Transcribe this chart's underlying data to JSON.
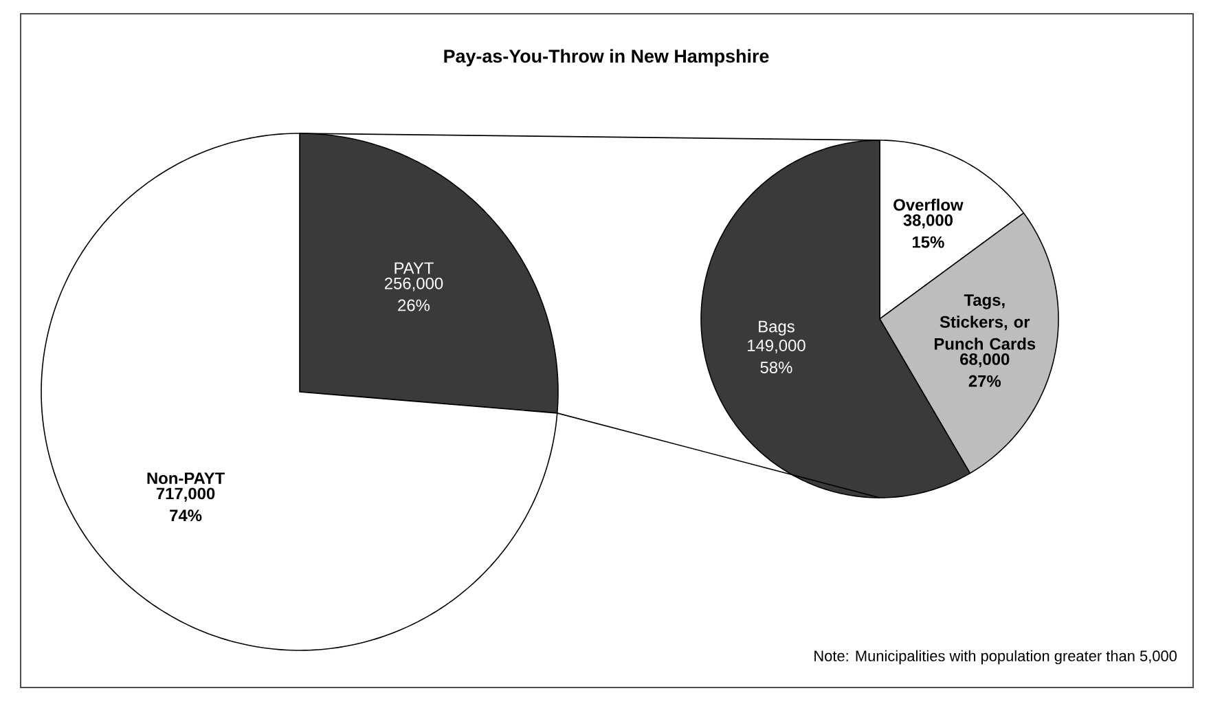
{
  "chart_data": [
    {
      "type": "pie",
      "title": "Pay-as-You-Throw in New Hampshire",
      "categories": [
        "PAYT",
        "Non-PAYT"
      ],
      "values": [
        256000,
        717000
      ],
      "colors": [
        "#3a3a3a",
        "#ffffff"
      ],
      "value_labels": [
        "256,000 26%",
        "717,000 74%"
      ]
    },
    {
      "type": "pie",
      "categories": [
        "Overflow",
        "Tags, Stickers, or Punch Cards",
        "Bags"
      ],
      "values": [
        38000,
        68000,
        149000
      ],
      "colors": [
        "#ffffff",
        "#bdbdbd",
        "#3a3a3a"
      ],
      "value_labels": [
        "38,000 15%",
        "68,000 27%",
        "149,000 58%"
      ],
      "annotations": [
        "Note: Municipalities with population greater than 5,000"
      ]
    }
  ]
}
